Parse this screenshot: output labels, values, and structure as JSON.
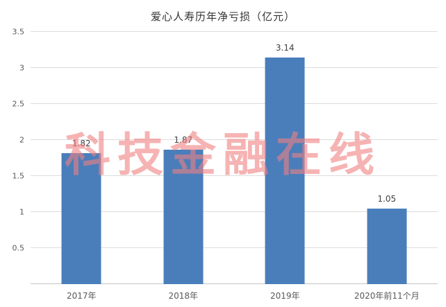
{
  "watermark": {
    "text": "科技金融在线",
    "color": "#F08080"
  },
  "chart_data": {
    "type": "bar",
    "title": "爱心人寿历年净亏损（亿元）",
    "categories": [
      "2017年",
      "2018年",
      "2019年",
      "2020年前11个月"
    ],
    "values": [
      1.82,
      1.87,
      3.14,
      1.05
    ],
    "data_labels": [
      "1.82",
      "1.87",
      "3.14",
      "1.05"
    ],
    "ylim": [
      0,
      3.5
    ],
    "yticks": [
      0.5,
      1,
      1.5,
      2,
      2.5,
      3,
      3.5
    ],
    "ytick_labels": [
      "0.5",
      "1",
      "1.5",
      "2",
      "2.5",
      "3",
      "3.5"
    ],
    "xlabel": "",
    "ylabel": "",
    "grid": true,
    "legend": false,
    "bar_color": "#4a7ebb",
    "gridline_color": "#dcdcdc",
    "label_color": "#595959"
  }
}
